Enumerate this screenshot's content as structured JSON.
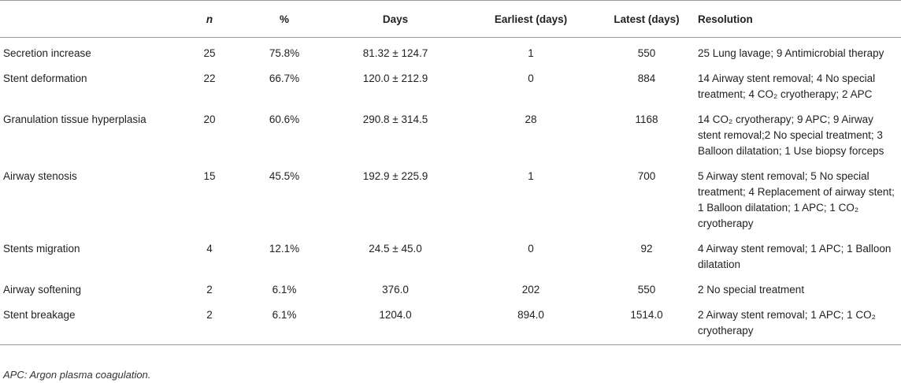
{
  "table": {
    "headers": [
      {
        "key": "condition",
        "label": "",
        "italic": false,
        "align": "l"
      },
      {
        "key": "n",
        "label": "n",
        "italic": true,
        "align": "c"
      },
      {
        "key": "pct",
        "label": "%",
        "italic": false,
        "align": "c"
      },
      {
        "key": "days",
        "label": "Days",
        "italic": false,
        "align": "c"
      },
      {
        "key": "earliest",
        "label": "Earliest (days)",
        "italic": false,
        "align": "c"
      },
      {
        "key": "latest",
        "label": "Latest (days)",
        "italic": false,
        "align": "c"
      },
      {
        "key": "resolution",
        "label": "Resolution",
        "italic": false,
        "align": "l"
      }
    ],
    "rows": [
      {
        "condition": "Secretion increase",
        "n": "25",
        "pct": "75.8%",
        "days": "81.32 ± 124.7",
        "earliest": "1",
        "latest": "550",
        "resolution": "25 Lung lavage; 9 Antimicrobial therapy"
      },
      {
        "condition": "Stent deformation",
        "n": "22",
        "pct": "66.7%",
        "days": "120.0 ± 212.9",
        "earliest": "0",
        "latest": "884",
        "resolution": "14 Airway stent removal; 4 No special treatment; 4 CO₂ cryotherapy; 2 APC"
      },
      {
        "condition": "Granulation tissue hyperplasia",
        "n": "20",
        "pct": "60.6%",
        "days": "290.8 ± 314.5",
        "earliest": "28",
        "latest": "1168",
        "resolution": "14 CO₂ cryotherapy; 9 APC; 9 Airway stent removal;2 No special treatment; 3 Balloon dilatation; 1 Use biopsy forceps"
      },
      {
        "condition": "Airway stenosis",
        "n": "15",
        "pct": "45.5%",
        "days": "192.9 ± 225.9",
        "earliest": "1",
        "latest": "700",
        "resolution": "5 Airway stent removal; 5 No special treatment; 4 Replacement of airway stent; 1 Balloon dilatation; 1 APC; 1 CO₂ cryotherapy"
      },
      {
        "condition": "Stents migration",
        "n": "4",
        "pct": "12.1%",
        "days": "24.5 ± 45.0",
        "earliest": "0",
        "latest": "92",
        "resolution": "4 Airway stent removal; 1 APC; 1 Balloon dilatation"
      },
      {
        "condition": "Airway softening",
        "n": "2",
        "pct": "6.1%",
        "days": "376.0",
        "earliest": "202",
        "latest": "550",
        "resolution": "2 No special treatment"
      },
      {
        "condition": "Stent breakage",
        "n": "2",
        "pct": "6.1%",
        "days": "1204.0",
        "earliest": "894.0",
        "latest": "1514.0",
        "resolution": "2 Airway stent removal; 1 APC; 1 CO₂ cryotherapy"
      }
    ]
  },
  "footnote": "APC: Argon plasma coagulation."
}
